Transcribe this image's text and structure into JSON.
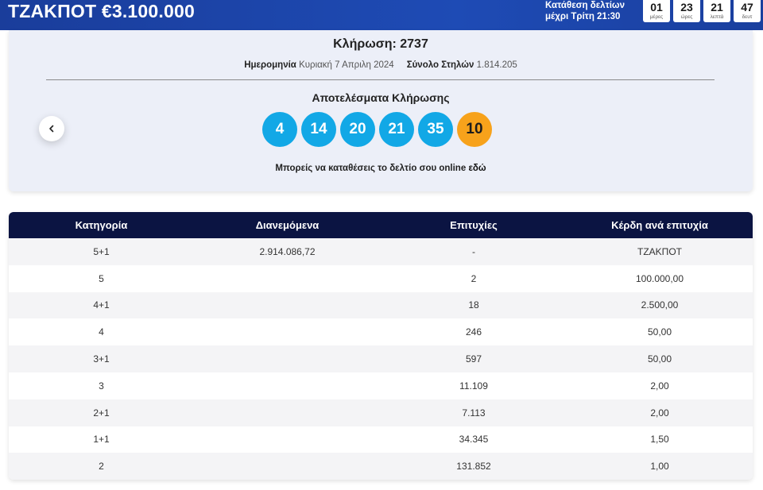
{
  "header": {
    "jackpot": "ΤΖΑΚΠΟΤ €3.100.000",
    "deadline_line1": "Κατάθεση δελτίων",
    "deadline_line2": "μέχρι Τρίτη 21:30",
    "countdown": [
      {
        "value": "01",
        "label": "μέρες"
      },
      {
        "value": "23",
        "label": "ώρες"
      },
      {
        "value": "21",
        "label": "λεπτά"
      },
      {
        "value": "47",
        "label": "δευτ"
      }
    ]
  },
  "draw": {
    "title": "Κλήρωση: 2737",
    "date_label": "Ημερομηνία",
    "date_value": "Κυριακή 7 Απριλη 2024",
    "columns_label": "Σύνολο Στηλών",
    "columns_value": "1.814.205",
    "results_title": "Αποτελέσματα Κλήρωσης",
    "numbers": [
      "4",
      "14",
      "20",
      "21",
      "35"
    ],
    "bonus": "10",
    "online_text": "Μπορείς να καταθέσεις το δελτίο σου online",
    "online_link": "εδώ",
    "prev_icon": "chevron-left-icon"
  },
  "table": {
    "headers": [
      "Κατηγορία",
      "Διανεμόμενα",
      "Επιτυχίες",
      "Κέρδη ανά επιτυχία"
    ],
    "rows": [
      [
        "5+1",
        "2.914.086,72",
        "-",
        "ΤΖΑΚΠΟΤ"
      ],
      [
        "5",
        "",
        "2",
        "100.000,00"
      ],
      [
        "4+1",
        "",
        "18",
        "2.500,00"
      ],
      [
        "4",
        "",
        "246",
        "50,00"
      ],
      [
        "3+1",
        "",
        "597",
        "50,00"
      ],
      [
        "3",
        "",
        "11.109",
        "2,00"
      ],
      [
        "2+1",
        "",
        "7.113",
        "2,00"
      ],
      [
        "1+1",
        "",
        "34.345",
        "1,50"
      ],
      [
        "2",
        "",
        "131.852",
        "1,00"
      ]
    ]
  },
  "colors": {
    "header_bg": "#1e4bb5",
    "table_header_bg": "#0b1442",
    "ball_blue": "#12a8e6",
    "ball_bonus": "#f7a21b"
  }
}
